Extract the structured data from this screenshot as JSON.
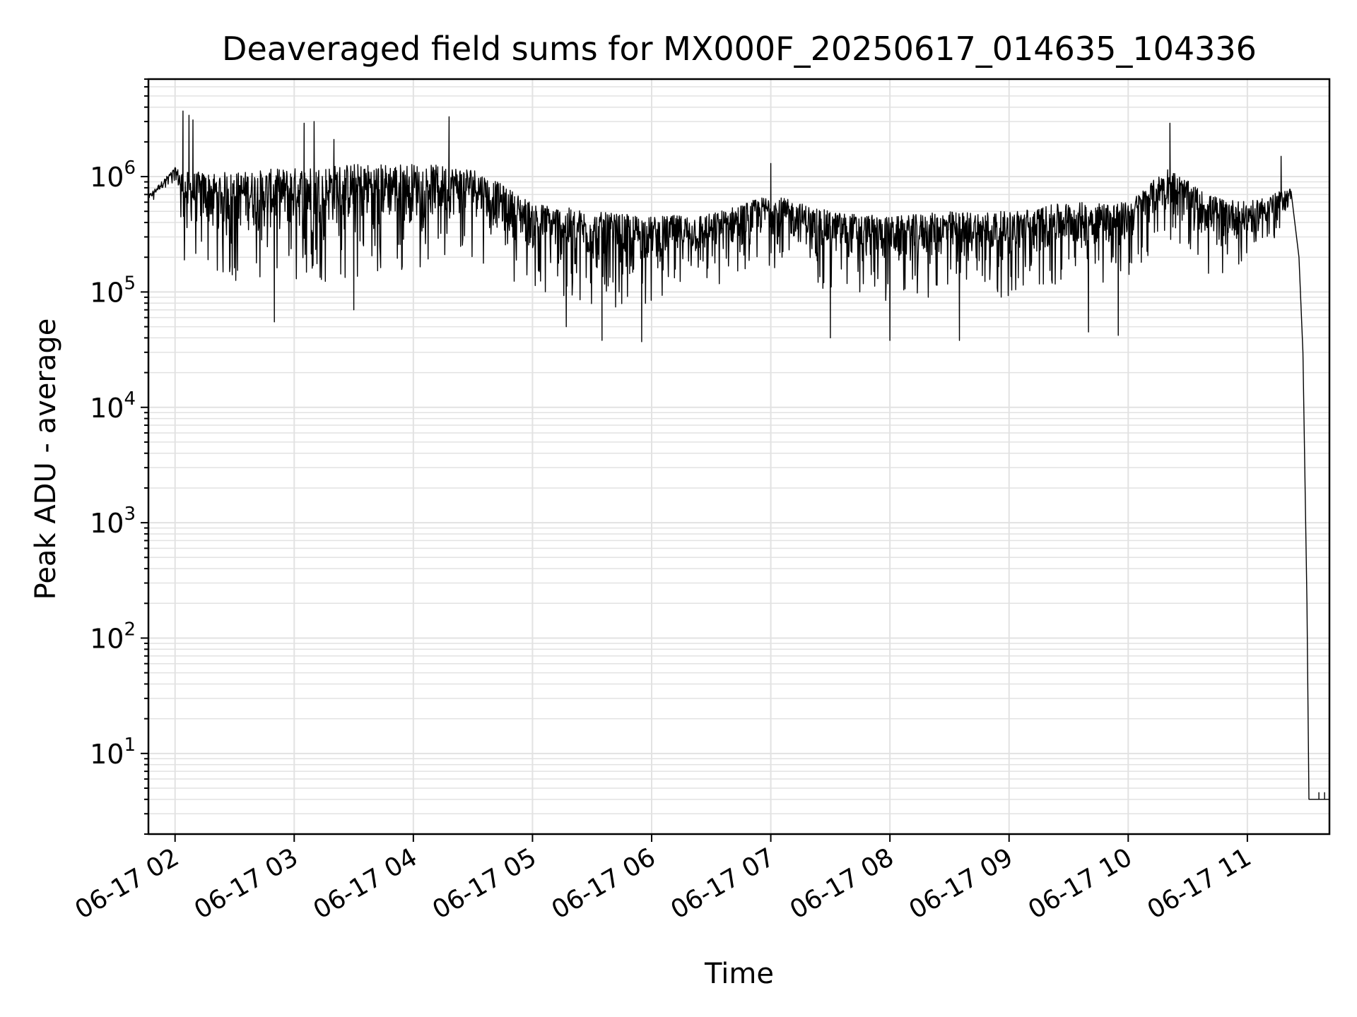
{
  "chart_data": {
    "type": "line",
    "title": "Deaveraged field sums for MX000F_20250617_014635_104336",
    "xlabel": "Time",
    "ylabel": "Peak ADU - average",
    "yscale": "log",
    "ylim": [
      2,
      7000000
    ],
    "xlim": [
      "2025-06-17T01:46:35",
      "2025-06-17T11:41:20"
    ],
    "grid": true,
    "x_tick_labels": [
      "06-17 02",
      "06-17 03",
      "06-17 04",
      "06-17 05",
      "06-17 06",
      "06-17 07",
      "06-17 08",
      "06-17 09",
      "06-17 10",
      "06-17 11"
    ],
    "x_tick_values": [
      "2025-06-17T02:00:00",
      "2025-06-17T03:00:00",
      "2025-06-17T04:00:00",
      "2025-06-17T05:00:00",
      "2025-06-17T06:00:00",
      "2025-06-17T07:00:00",
      "2025-06-17T08:00:00",
      "2025-06-17T09:00:00",
      "2025-06-17T10:00:00",
      "2025-06-17T11:00:00"
    ],
    "y_tick_values": [
      10,
      100,
      1000,
      10000,
      100000,
      1000000
    ],
    "y_tick_labels": [
      {
        "base": "10",
        "exp": "1"
      },
      {
        "base": "10",
        "exp": "2"
      },
      {
        "base": "10",
        "exp": "3"
      },
      {
        "base": "10",
        "exp": "4"
      },
      {
        "base": "10",
        "exp": "5"
      },
      {
        "base": "10",
        "exp": "6"
      }
    ],
    "series": [
      {
        "color": "#000000",
        "envelope": {
          "x": [
            "2025-06-17T01:47:00",
            "2025-06-17T02:00:00",
            "2025-06-17T02:05:00",
            "2025-06-17T02:30:00",
            "2025-06-17T03:00:00",
            "2025-06-17T03:30:00",
            "2025-06-17T04:00:00",
            "2025-06-17T04:30:00",
            "2025-06-17T05:00:00",
            "2025-06-17T05:30:00",
            "2025-06-17T06:00:00",
            "2025-06-17T06:30:00",
            "2025-06-17T07:00:00",
            "2025-06-17T07:30:00",
            "2025-06-17T08:00:00",
            "2025-06-17T08:30:00",
            "2025-06-17T09:00:00",
            "2025-06-17T09:30:00",
            "2025-06-17T10:00:00",
            "2025-06-17T10:20:00",
            "2025-06-17T10:40:00",
            "2025-06-17T11:00:00",
            "2025-06-17T11:22:00"
          ],
          "high": [
            700000,
            1200000,
            1100000,
            1100000,
            1200000,
            1300000,
            1300000,
            1200000,
            600000,
            500000,
            450000,
            480000,
            700000,
            500000,
            450000,
            500000,
            500000,
            600000,
            600000,
            1200000,
            700000,
            600000,
            800000
          ],
          "low": [
            550000,
            900000,
            150000,
            120000,
            110000,
            130000,
            150000,
            200000,
            100000,
            70000,
            80000,
            100000,
            160000,
            100000,
            80000,
            90000,
            90000,
            110000,
            130000,
            300000,
            140000,
            150000,
            400000
          ]
        },
        "spikes": [
          {
            "x": "2025-06-17T02:04:00",
            "y": 3700000
          },
          {
            "x": "2025-06-17T02:07:00",
            "y": 3400000
          },
          {
            "x": "2025-06-17T02:09:00",
            "y": 3100000
          },
          {
            "x": "2025-06-17T03:05:00",
            "y": 2900000
          },
          {
            "x": "2025-06-17T03:10:00",
            "y": 3000000
          },
          {
            "x": "2025-06-17T03:20:00",
            "y": 2100000
          },
          {
            "x": "2025-06-17T04:18:00",
            "y": 3300000
          },
          {
            "x": "2025-06-17T07:00:00",
            "y": 1300000
          },
          {
            "x": "2025-06-17T10:21:00",
            "y": 2900000
          },
          {
            "x": "2025-06-17T11:17:00",
            "y": 1500000
          },
          {
            "x": "2025-06-17T02:50:00",
            "y": 55000
          },
          {
            "x": "2025-06-17T03:30:00",
            "y": 70000
          },
          {
            "x": "2025-06-17T05:17:00",
            "y": 50000
          },
          {
            "x": "2025-06-17T05:35:00",
            "y": 38000
          },
          {
            "x": "2025-06-17T05:55:00",
            "y": 37000
          },
          {
            "x": "2025-06-17T07:30:00",
            "y": 40000
          },
          {
            "x": "2025-06-17T08:00:00",
            "y": 38000
          },
          {
            "x": "2025-06-17T08:35:00",
            "y": 38000
          },
          {
            "x": "2025-06-17T09:40:00",
            "y": 45000
          },
          {
            "x": "2025-06-17T09:55:00",
            "y": 42000
          }
        ],
        "tail": {
          "x": [
            "2025-06-17T11:26:00",
            "2025-06-17T11:28:00",
            "2025-06-17T11:30:00",
            "2025-06-17T11:31:00",
            "2025-06-17T11:32:30",
            "2025-06-17T11:41:00"
          ],
          "y": [
            200000,
            30000,
            200,
            4,
            4,
            4
          ]
        }
      }
    ]
  }
}
